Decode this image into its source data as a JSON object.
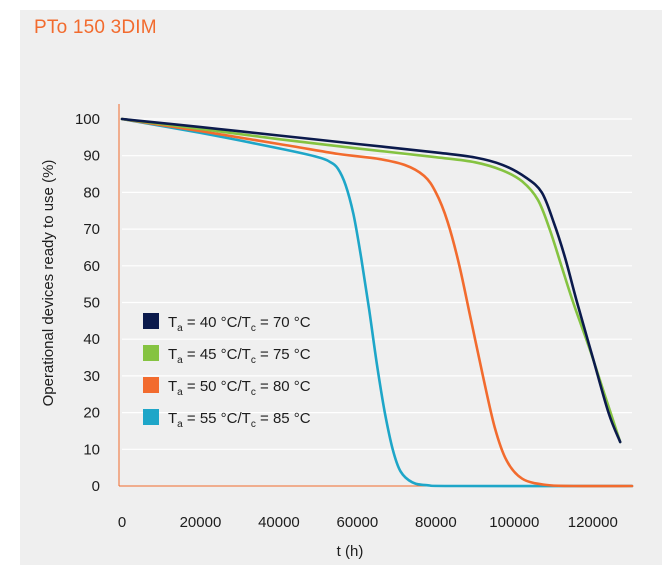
{
  "chart_data": {
    "type": "line",
    "title": "PTo 150 3DIM",
    "xlabel": "t (h)",
    "ylabel": "Operational devices ready to use (%)",
    "xlim": [
      0,
      130000
    ],
    "ylim": [
      0,
      100
    ],
    "x_ticks": [
      "0",
      "20000",
      "40000",
      "60000",
      "80000",
      "100000",
      "120000"
    ],
    "y_ticks": [
      "0",
      "10",
      "20",
      "30",
      "40",
      "50",
      "60",
      "70",
      "80",
      "90",
      "100"
    ],
    "grid": "horizontal",
    "legend_position": "lower-left",
    "series": [
      {
        "name": "Ta = 40 °C/Tc = 70 °C",
        "legend": {
          "t1": "T",
          "s1": "a",
          "mid": " = 40 °C/T",
          "s2": "c",
          "end": " = 70 °C"
        },
        "color": "#0b1a4c",
        "points": [
          [
            0,
            100
          ],
          [
            20000,
            97.8
          ],
          [
            40000,
            95.5
          ],
          [
            60000,
            93.2
          ],
          [
            80000,
            90.9
          ],
          [
            90000,
            89.5
          ],
          [
            97000,
            87.5
          ],
          [
            103000,
            84
          ],
          [
            107000,
            80
          ],
          [
            110000,
            72
          ],
          [
            113000,
            62
          ],
          [
            116000,
            50
          ],
          [
            120000,
            35
          ],
          [
            124000,
            20
          ],
          [
            127000,
            12
          ]
        ]
      },
      {
        "name": "Ta = 45 °C/Tc = 75 °C",
        "legend": {
          "t1": "T",
          "s1": "a",
          "mid": " = 45 °C/T",
          "s2": "c",
          "end": " = 75 °C"
        },
        "color": "#85c341",
        "points": [
          [
            0,
            100
          ],
          [
            20000,
            97.3
          ],
          [
            40000,
            94.5
          ],
          [
            60000,
            92
          ],
          [
            80000,
            89.6
          ],
          [
            90000,
            88.2
          ],
          [
            97000,
            86
          ],
          [
            102000,
            83
          ],
          [
            106000,
            78
          ],
          [
            109000,
            70
          ],
          [
            112000,
            60
          ],
          [
            115000,
            50
          ],
          [
            119000,
            38
          ],
          [
            123000,
            25
          ],
          [
            127000,
            12
          ]
        ]
      },
      {
        "name": "Ta = 50 °C/Tc = 80 °C",
        "legend": {
          "t1": "T",
          "s1": "a",
          "mid": " = 50 °C/T",
          "s2": "c",
          "end": " = 80 °C"
        },
        "color": "#f26b2e",
        "points": [
          [
            0,
            100
          ],
          [
            20000,
            96.7
          ],
          [
            40000,
            93.2
          ],
          [
            55000,
            90.5
          ],
          [
            65000,
            89.2
          ],
          [
            72000,
            87.5
          ],
          [
            77000,
            84.5
          ],
          [
            80000,
            80
          ],
          [
            83000,
            72
          ],
          [
            86000,
            60
          ],
          [
            89000,
            45
          ],
          [
            92000,
            30
          ],
          [
            95000,
            16
          ],
          [
            98000,
            7
          ],
          [
            102000,
            2
          ],
          [
            108000,
            0.3
          ],
          [
            115000,
            0
          ],
          [
            130000,
            0
          ]
        ]
      },
      {
        "name": "Ta = 55 °C/Tc = 85 °C",
        "legend": {
          "t1": "T",
          "s1": "a",
          "mid": " = 55 °C/T",
          "s2": "c",
          "end": " = 85 °C"
        },
        "color": "#1ea6c8",
        "points": [
          [
            0,
            100
          ],
          [
            20000,
            96.2
          ],
          [
            40000,
            92
          ],
          [
            50000,
            89.6
          ],
          [
            53000,
            88.3
          ],
          [
            55000,
            86.5
          ],
          [
            57000,
            82
          ],
          [
            59000,
            74
          ],
          [
            61000,
            62
          ],
          [
            63000,
            48
          ],
          [
            65000,
            33
          ],
          [
            67000,
            20
          ],
          [
            69000,
            10
          ],
          [
            71000,
            4
          ],
          [
            74000,
            1
          ],
          [
            78000,
            0.2
          ],
          [
            85000,
            0
          ],
          [
            130000,
            0
          ]
        ]
      }
    ]
  }
}
